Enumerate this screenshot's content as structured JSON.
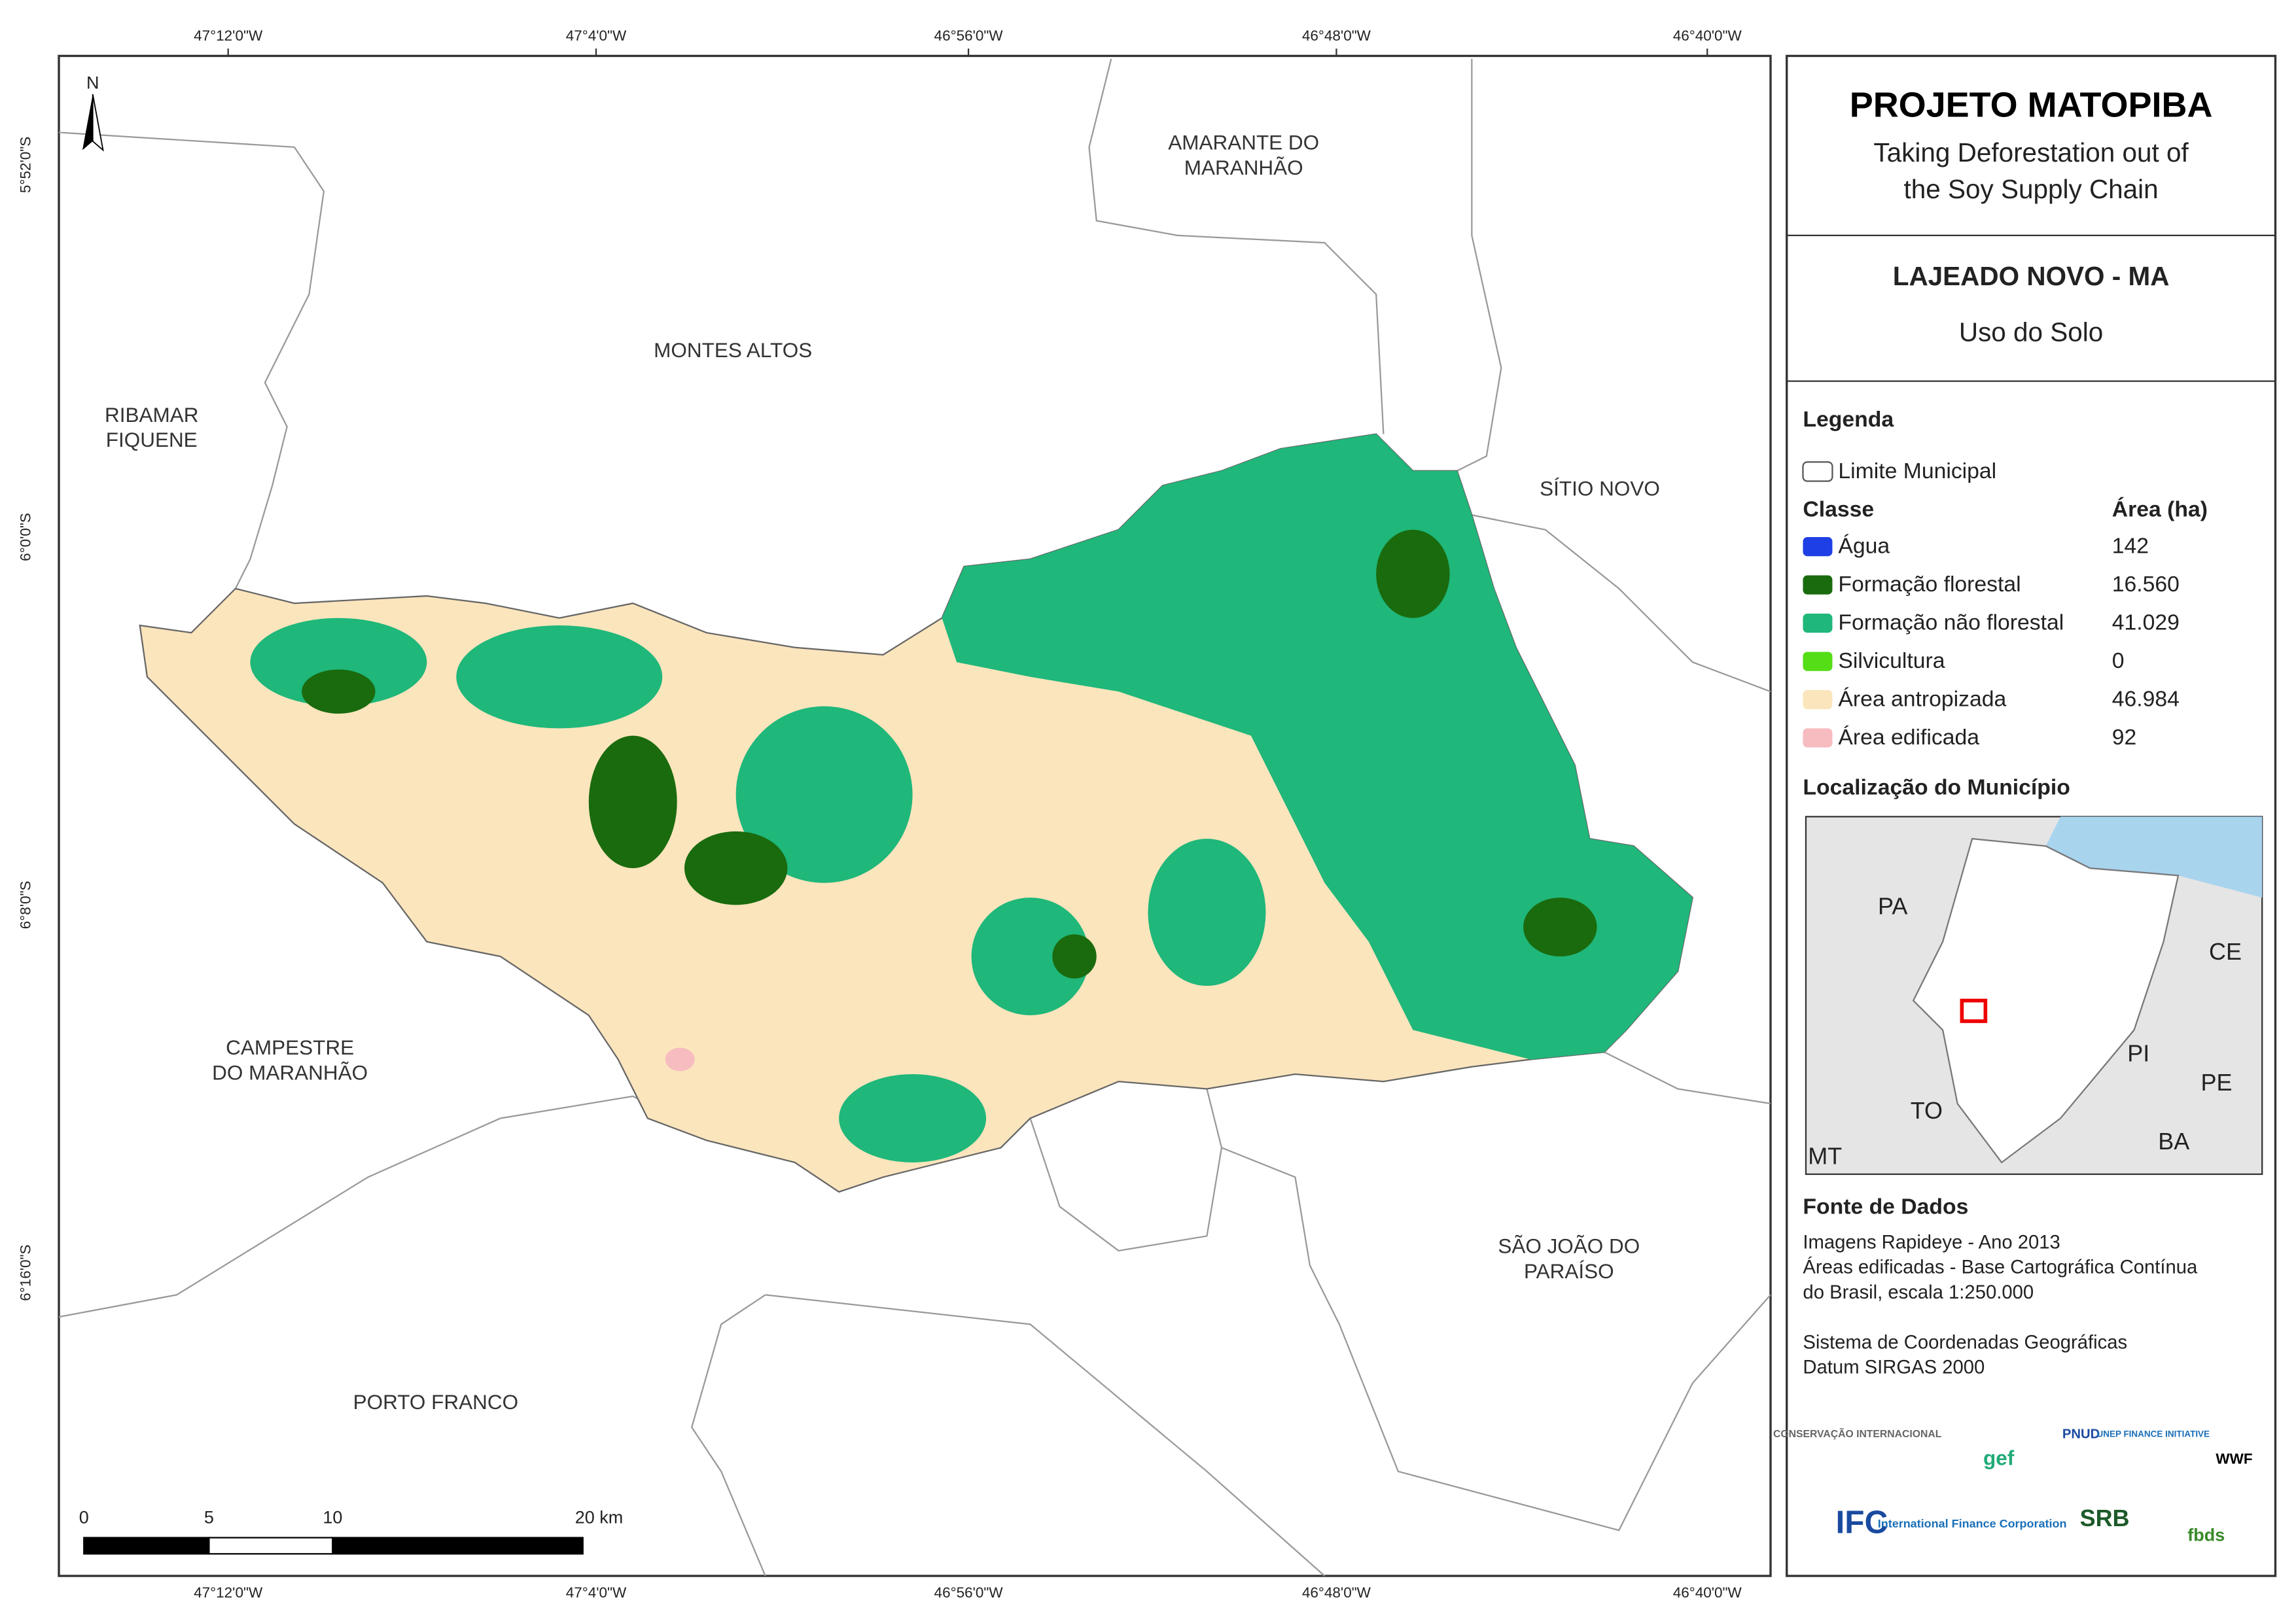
{
  "map": {
    "top_coords": [
      "47°12'0\"W",
      "47°4'0\"W",
      "46°56'0\"W",
      "46°48'0\"W",
      "46°40'0\"W"
    ],
    "left_coords": [
      "5°52'0\"S",
      "6°0'0\"S",
      "6°8'0\"S",
      "6°16'0\"S"
    ],
    "north": "N",
    "places": [
      {
        "lines": [
          "AMARANTE DO",
          "MARANHÃO"
        ]
      },
      {
        "lines": [
          "MONTES ALTOS"
        ]
      },
      {
        "lines": [
          "RIBAMAR",
          "FIQUENE"
        ]
      },
      {
        "lines": [
          "SÍTIO NOVO"
        ]
      },
      {
        "lines": [
          "CAMPESTRE",
          "DO MARANHÃO"
        ]
      },
      {
        "lines": [
          "SÃO JOÃO DO",
          "PARAÍSO"
        ]
      },
      {
        "lines": [
          "PORTO FRANCO"
        ]
      }
    ],
    "scale": [
      "0",
      "5",
      "10",
      "20 km"
    ]
  },
  "panel": {
    "title": "PROJETO MATOPIBA",
    "subtitle_lines": [
      "Taking Deforestation out of",
      "the Soy Supply Chain"
    ],
    "municipality": "LAJEADO NOVO - MA",
    "theme": "Uso do Solo",
    "legend_title": "Legenda",
    "boundary_label": "Limite Municipal",
    "class_header": "Classe",
    "area_header": "Área (ha)",
    "classes": [
      {
        "name": "Água",
        "area": "142",
        "color": "#1f3fe6"
      },
      {
        "name": "Formação florestal",
        "area": "16.560",
        "color": "#1a6b0e"
      },
      {
        "name": "Formação não florestal",
        "area": "41.029",
        "color": "#1fb77a"
      },
      {
        "name": "Silvicultura",
        "area": "0",
        "color": "#55dd16"
      },
      {
        "name": "Área antropizada",
        "area": "46.984",
        "color": "#fbe5bd"
      },
      {
        "name": "Área edificada",
        "area": "92",
        "color": "#f7bcc0"
      }
    ],
    "location_title": "Localização do Município",
    "inset_labels": [
      "PA",
      "CE",
      "PI",
      "PE",
      "TO",
      "BA",
      "MT"
    ],
    "sources_title": "Fonte de Dados",
    "sources": [
      "Imagens Rapideye - Ano 2013",
      "Áreas edificadas - Base Cartográfica Contínua",
      "do Brasil, escala 1:250.000",
      "Sistema de Coordenadas Geográficas",
      "Datum SIRGAS 2000"
    ]
  },
  "logos": [
    "CONSERVAÇÃO INTERNACIONAL",
    "gef",
    "PNUD",
    "UNEP FINANCE INITIATIVE",
    "WWF",
    "IFC",
    "International Finance Corporation",
    "SRB",
    "fbds"
  ]
}
